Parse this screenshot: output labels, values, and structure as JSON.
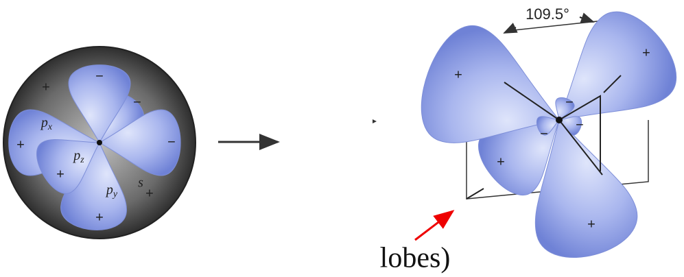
{
  "left": {
    "signs": [
      "−",
      "−",
      "−",
      "+",
      "+",
      "+",
      "+",
      "+"
    ],
    "orbitals": [
      {
        "letter": "p",
        "subscript": "x"
      },
      {
        "letter": "p",
        "subscript": "z"
      },
      {
        "letter": "p",
        "subscript": "y"
      }
    ],
    "s_label": "s"
  },
  "right": {
    "angle": "109.5°",
    "signs": [
      "+",
      "+",
      "+",
      "+",
      "−",
      "−",
      "−"
    ]
  },
  "annotation": "lobes)"
}
